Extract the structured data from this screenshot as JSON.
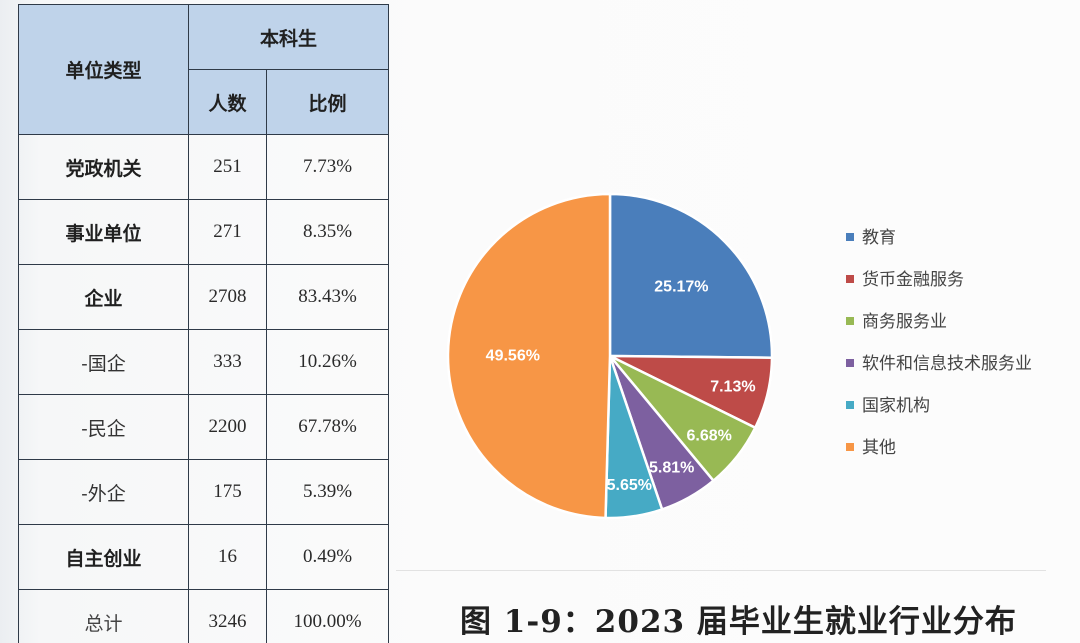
{
  "table": {
    "col_type_header": "单位类型",
    "group_header": "本科生",
    "col_count_header": "人数",
    "col_ratio_header": "比例",
    "rows": [
      {
        "label": "党政机关",
        "count": "251",
        "ratio": "7.73%"
      },
      {
        "label": "事业单位",
        "count": "271",
        "ratio": "8.35%"
      },
      {
        "label": "企业",
        "count": "2708",
        "ratio": "83.43%"
      },
      {
        "label": "-国企",
        "count": "333",
        "ratio": "10.26%"
      },
      {
        "label": "-民企",
        "count": "2200",
        "ratio": "67.78%"
      },
      {
        "label": "-外企",
        "count": "175",
        "ratio": "5.39%"
      },
      {
        "label": "自主创业",
        "count": "16",
        "ratio": "0.49%"
      },
      {
        "label": "总计",
        "count": "3246",
        "ratio": "100.00%"
      }
    ]
  },
  "chart_data": {
    "type": "pie",
    "title": "图 1-9：2023 届毕业生就业行业分布",
    "legend_position": "right",
    "slices": [
      {
        "name": "教育",
        "value": 25.17,
        "label": "25.17%",
        "color": "#4a7ebb"
      },
      {
        "name": "货币金融服务",
        "value": 7.13,
        "label": "7.13%",
        "color": "#be4b48"
      },
      {
        "name": "商务服务业",
        "value": 6.68,
        "label": "6.68%",
        "color": "#98b954"
      },
      {
        "name": "软件和信息技术服务业",
        "value": 5.81,
        "label": "5.81%",
        "color": "#7d60a0"
      },
      {
        "name": "国家机构",
        "value": 5.65,
        "label": "5.65%",
        "color": "#46aac5"
      },
      {
        "name": "其他",
        "value": 49.56,
        "label": "49.56%",
        "color": "#f79646"
      }
    ]
  }
}
